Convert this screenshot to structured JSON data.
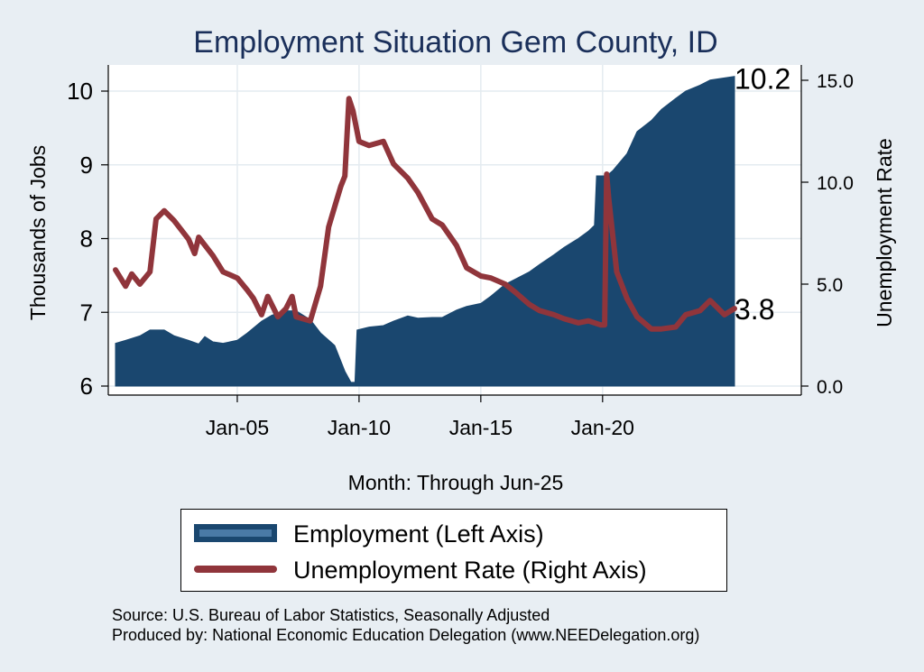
{
  "chart_data": {
    "type": "area+line",
    "title": "Employment Situation Gem  County, ID",
    "xlabel": "Month: Through Jun-25",
    "ylabel_left": "Thousands of Jobs",
    "ylabel_right": "Unemployment Rate",
    "x_ticks": [
      "Jan-05",
      "Jan-10",
      "Jan-15",
      "Jan-20"
    ],
    "y_left_ticks": [
      "6",
      "7",
      "8",
      "9",
      "10"
    ],
    "y_right_ticks": [
      "0.0",
      "5.0",
      "10.0",
      "15.0"
    ],
    "y_left_range": [
      6,
      10.2
    ],
    "y_right_range": [
      0,
      15
    ],
    "x_range": [
      "2000-01",
      "2025-06"
    ],
    "grid": true,
    "legend_position": "bottom",
    "series": [
      {
        "name": "Employment (Left Axis)",
        "type": "area",
        "axis": "left",
        "color": "#1a476f",
        "points": [
          [
            "2000-01",
            6.58
          ],
          [
            "2000-06",
            6.62
          ],
          [
            "2001-01",
            6.68
          ],
          [
            "2001-06",
            6.76
          ],
          [
            "2002-01",
            6.76
          ],
          [
            "2002-06",
            6.68
          ],
          [
            "2003-01",
            6.62
          ],
          [
            "2003-06",
            6.57
          ],
          [
            "2003-09",
            6.67
          ],
          [
            "2004-01",
            6.6
          ],
          [
            "2004-06",
            6.58
          ],
          [
            "2005-01",
            6.62
          ],
          [
            "2005-06",
            6.72
          ],
          [
            "2006-01",
            6.88
          ],
          [
            "2006-06",
            6.96
          ],
          [
            "2007-01",
            7.02
          ],
          [
            "2007-06",
            7.02
          ],
          [
            "2008-01",
            6.9
          ],
          [
            "2008-06",
            6.72
          ],
          [
            "2009-01",
            6.55
          ],
          [
            "2009-06",
            6.2
          ],
          [
            "2009-09",
            6.05
          ],
          [
            "2009-11",
            6.05
          ],
          [
            "2009-12",
            6.76
          ],
          [
            "2010-06",
            6.8
          ],
          [
            "2011-01",
            6.82
          ],
          [
            "2011-06",
            6.88
          ],
          [
            "2012-01",
            6.95
          ],
          [
            "2012-06",
            6.92
          ],
          [
            "2013-01",
            6.93
          ],
          [
            "2013-06",
            6.93
          ],
          [
            "2014-01",
            7.03
          ],
          [
            "2014-06",
            7.08
          ],
          [
            "2015-01",
            7.12
          ],
          [
            "2015-06",
            7.22
          ],
          [
            "2016-01",
            7.38
          ],
          [
            "2016-06",
            7.45
          ],
          [
            "2017-01",
            7.55
          ],
          [
            "2017-06",
            7.65
          ],
          [
            "2018-01",
            7.78
          ],
          [
            "2018-06",
            7.88
          ],
          [
            "2019-01",
            8.0
          ],
          [
            "2019-06",
            8.1
          ],
          [
            "2019-09",
            8.18
          ],
          [
            "2019-10",
            8.85
          ],
          [
            "2020-03",
            8.85
          ],
          [
            "2020-06",
            8.92
          ],
          [
            "2021-01",
            9.15
          ],
          [
            "2021-06",
            9.45
          ],
          [
            "2022-01",
            9.6
          ],
          [
            "2022-06",
            9.75
          ],
          [
            "2023-01",
            9.9
          ],
          [
            "2023-06",
            10.0
          ],
          [
            "2024-01",
            10.08
          ],
          [
            "2024-06",
            10.15
          ],
          [
            "2025-06",
            10.2
          ]
        ],
        "last_value_label": "10.2"
      },
      {
        "name": "Unemployment Rate (Right Axis)",
        "type": "line",
        "axis": "right",
        "color": "#90353b",
        "points": [
          [
            "2000-01",
            5.7
          ],
          [
            "2000-06",
            4.9
          ],
          [
            "2000-09",
            5.5
          ],
          [
            "2001-01",
            5.0
          ],
          [
            "2001-06",
            5.6
          ],
          [
            "2001-09",
            8.2
          ],
          [
            "2002-01",
            8.6
          ],
          [
            "2002-06",
            8.1
          ],
          [
            "2003-01",
            7.2
          ],
          [
            "2003-04",
            6.5
          ],
          [
            "2003-06",
            7.3
          ],
          [
            "2004-01",
            6.4
          ],
          [
            "2004-06",
            5.6
          ],
          [
            "2005-01",
            5.3
          ],
          [
            "2005-06",
            4.7
          ],
          [
            "2005-09",
            4.3
          ],
          [
            "2006-01",
            3.5
          ],
          [
            "2006-04",
            4.4
          ],
          [
            "2006-09",
            3.4
          ],
          [
            "2007-01",
            3.8
          ],
          [
            "2007-04",
            4.4
          ],
          [
            "2007-06",
            3.4
          ],
          [
            "2008-01",
            3.2
          ],
          [
            "2008-06",
            4.9
          ],
          [
            "2008-10",
            7.8
          ],
          [
            "2009-01",
            8.8
          ],
          [
            "2009-04",
            9.8
          ],
          [
            "2009-06",
            10.3
          ],
          [
            "2009-08",
            14.1
          ],
          [
            "2009-10",
            13.5
          ],
          [
            "2010-01",
            12.0
          ],
          [
            "2010-06",
            11.8
          ],
          [
            "2011-01",
            12.0
          ],
          [
            "2011-06",
            10.9
          ],
          [
            "2012-01",
            10.2
          ],
          [
            "2012-06",
            9.5
          ],
          [
            "2013-01",
            8.2
          ],
          [
            "2013-06",
            7.9
          ],
          [
            "2014-01",
            6.9
          ],
          [
            "2014-06",
            5.8
          ],
          [
            "2015-01",
            5.4
          ],
          [
            "2015-06",
            5.3
          ],
          [
            "2016-01",
            5.0
          ],
          [
            "2016-06",
            4.6
          ],
          [
            "2017-01",
            4.0
          ],
          [
            "2017-06",
            3.7
          ],
          [
            "2018-01",
            3.5
          ],
          [
            "2018-06",
            3.3
          ],
          [
            "2019-01",
            3.1
          ],
          [
            "2019-06",
            3.2
          ],
          [
            "2019-12",
            3.0
          ],
          [
            "2020-02",
            3.0
          ],
          [
            "2020-03",
            10.4
          ],
          [
            "2020-04",
            9.2
          ],
          [
            "2020-08",
            5.6
          ],
          [
            "2021-01",
            4.3
          ],
          [
            "2021-06",
            3.4
          ],
          [
            "2022-01",
            2.8
          ],
          [
            "2022-06",
            2.8
          ],
          [
            "2023-01",
            2.9
          ],
          [
            "2023-06",
            3.5
          ],
          [
            "2024-01",
            3.7
          ],
          [
            "2024-06",
            4.2
          ],
          [
            "2025-01",
            3.5
          ],
          [
            "2025-06",
            3.8
          ]
        ],
        "last_value_label": "3.8"
      }
    ],
    "colors": {
      "background": "#e8eef3",
      "plot_background": "#ffffff",
      "grid": "#e8eef3"
    }
  },
  "legend": {
    "employment_label": "Employment (Left Axis)",
    "unemployment_label": "Unemployment Rate (Right Axis)"
  },
  "footer": {
    "source": "Source: U.S. Bureau of Labor Statistics, Seasonally Adjusted",
    "produced_by": "Produced by: National Economic Education Delegation (www.NEEDelegation.org)"
  }
}
